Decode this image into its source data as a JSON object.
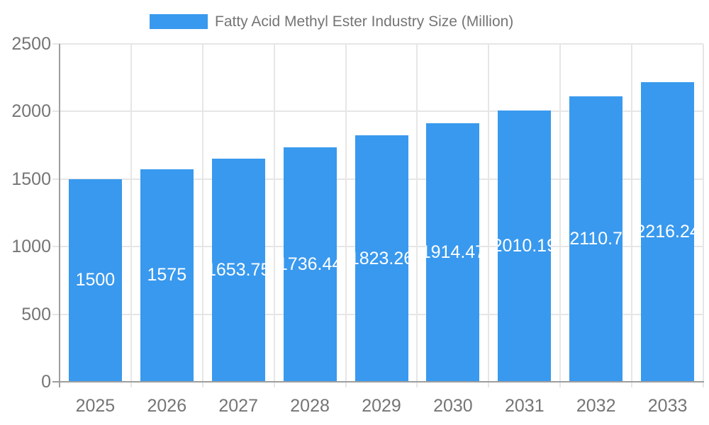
{
  "legend": {
    "label": "Fatty Acid Methyl Ester Industry Size (Million)"
  },
  "colors": {
    "bar": "#3999ee",
    "bar_label_text": "#ffffff",
    "axis_text": "#757575",
    "axis_line": "#9e9e9e",
    "grid_line": "#e6e6e6",
    "background": "#ffffff"
  },
  "chart_data": {
    "type": "bar",
    "title": "Fatty Acid Methyl Ester Industry Size (Million)",
    "categories": [
      "2025",
      "2026",
      "2027",
      "2028",
      "2029",
      "2030",
      "2031",
      "2032",
      "2033"
    ],
    "series": [
      {
        "name": "Fatty Acid Methyl Ester Industry Size (Million)",
        "values": [
          1500,
          1575,
          1653.75,
          1736.44,
          1823.26,
          1914.47,
          2010.19,
          2110.7,
          2216.24
        ]
      }
    ],
    "value_labels": [
      "1500",
      "1575",
      "1653.75",
      "1736.44",
      "1823.26",
      "1914.47",
      "2010.19",
      "2110.7",
      "2216.24"
    ],
    "xlabel": "",
    "ylabel": "",
    "ylim": [
      0,
      2500
    ],
    "yticks": [
      0,
      500,
      1000,
      1500,
      2000,
      2500
    ],
    "ytick_labels": [
      "0",
      "500",
      "1000",
      "1500",
      "2000",
      "2500"
    ],
    "grid": "both",
    "legend_position": "top",
    "bar_label_position": "middle"
  }
}
